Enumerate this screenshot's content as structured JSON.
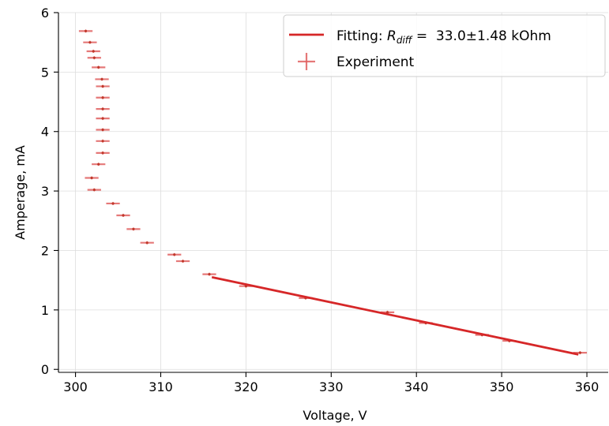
{
  "chart_data": {
    "type": "scatter",
    "xlabel": "Voltage, V",
    "ylabel": "Amperage, mA",
    "xlim": [
      298,
      362.5
    ],
    "ylim": [
      -0.05,
      6.0
    ],
    "xticks": [
      300,
      310,
      320,
      330,
      340,
      350,
      360
    ],
    "yticks": [
      0,
      1,
      2,
      3,
      4,
      5,
      6
    ],
    "grid": true,
    "legend_position": "top-right",
    "colors": {
      "fit": "#d62728",
      "experiment": "#e06060",
      "grid": "#dddddd"
    },
    "series": [
      {
        "name": "Experiment",
        "kind": "errorbar",
        "xerr": 0.8,
        "points": [
          [
            301.2,
            5.69
          ],
          [
            301.7,
            5.5
          ],
          [
            302.1,
            5.35
          ],
          [
            302.2,
            5.24
          ],
          [
            302.7,
            5.08
          ],
          [
            303.1,
            4.88
          ],
          [
            303.2,
            4.76
          ],
          [
            303.2,
            4.57
          ],
          [
            303.2,
            4.38
          ],
          [
            303.2,
            4.22
          ],
          [
            303.2,
            4.03
          ],
          [
            303.2,
            3.84
          ],
          [
            303.2,
            3.64
          ],
          [
            302.7,
            3.45
          ],
          [
            301.9,
            3.22
          ],
          [
            302.2,
            3.02
          ],
          [
            304.4,
            2.79
          ],
          [
            305.6,
            2.59
          ],
          [
            306.8,
            2.36
          ],
          [
            308.4,
            2.13
          ],
          [
            311.6,
            1.93
          ],
          [
            312.6,
            1.82
          ],
          [
            315.7,
            1.6
          ],
          [
            320.0,
            1.4
          ],
          [
            327.0,
            1.2
          ],
          [
            336.6,
            0.96
          ],
          [
            341.1,
            0.78
          ],
          [
            347.7,
            0.58
          ],
          [
            350.9,
            0.48
          ],
          [
            359.2,
            0.28
          ]
        ]
      },
      {
        "name": "Fitting",
        "kind": "line",
        "x": [
          316.0,
          359.0
        ],
        "y": [
          1.55,
          0.25
        ]
      }
    ],
    "legend": [
      {
        "series": "Fitting",
        "prefix": "Fitting: ",
        "symbol": "R",
        "subscript": "diff",
        "suffix": " =  33.0±1.48 kOhm"
      },
      {
        "series": "Experiment",
        "text": "Experiment"
      }
    ]
  }
}
